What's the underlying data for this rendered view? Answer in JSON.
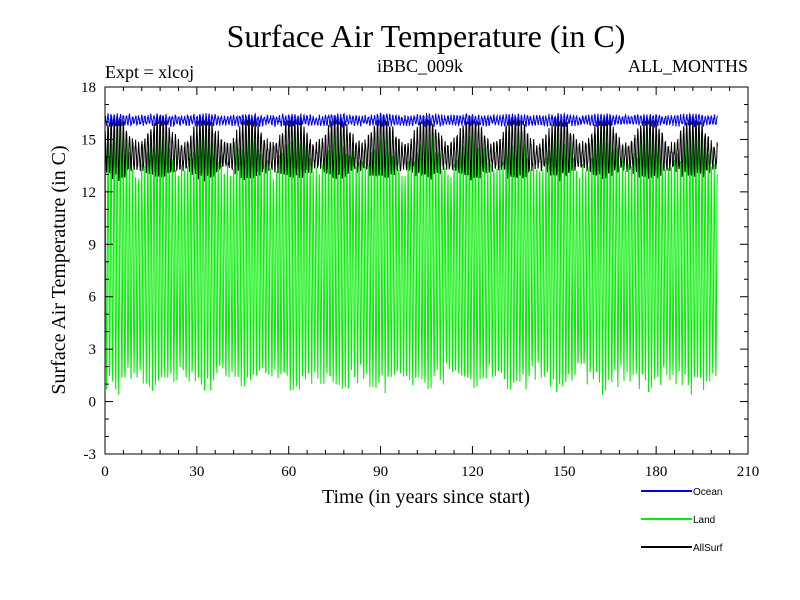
{
  "chart_data": {
    "type": "line",
    "title": "Surface Air Temperature (in C)",
    "subtitle_left": "Expt = xlcoj",
    "subtitle_center": "iBBC_009k",
    "subtitle_right": "ALL_MONTHS",
    "xlabel": "Time (in years since start)",
    "ylabel": "Surface Air Temperature (in C)",
    "xlim": [
      0,
      210
    ],
    "ylim": [
      -3,
      18
    ],
    "x_ticks": [
      0,
      30,
      60,
      90,
      120,
      150,
      180,
      210
    ],
    "x_tick_labels": [
      "0",
      "30",
      "60",
      "90",
      "120",
      "150",
      "180",
      "210"
    ],
    "y_ticks": [
      -3,
      0,
      3,
      6,
      9,
      12,
      15,
      18
    ],
    "y_tick_labels": [
      "-3",
      "0",
      "3",
      "6",
      "9",
      "12",
      "15",
      "18"
    ],
    "x_start": 0,
    "x_end": 200,
    "samples_per_year": 12,
    "series": [
      {
        "name": "Land",
        "color": "#00ee00",
        "mean": 7.8,
        "seasonal_amplitude": 6.5,
        "noise": 0.6,
        "modulation_period_years": 14.5,
        "modulation": 1.2
      },
      {
        "name": "AllSurf",
        "color": "#000000",
        "mean": 14.3,
        "seasonal_amplitude": 1.2,
        "noise": 0.25,
        "modulation_period_years": 14.5,
        "modulation": 0.9
      },
      {
        "name": "Ocean",
        "color": "#0000ee",
        "mean": 16.1,
        "seasonal_amplitude": 0.25,
        "noise": 0.12,
        "modulation_period_years": 14.5,
        "modulation": 0.05
      }
    ],
    "legend": [
      {
        "label": "Ocean",
        "color": "#0000ee"
      },
      {
        "label": "Land",
        "color": "#00ee00"
      },
      {
        "label": "AllSurf",
        "color": "#000000"
      }
    ]
  }
}
